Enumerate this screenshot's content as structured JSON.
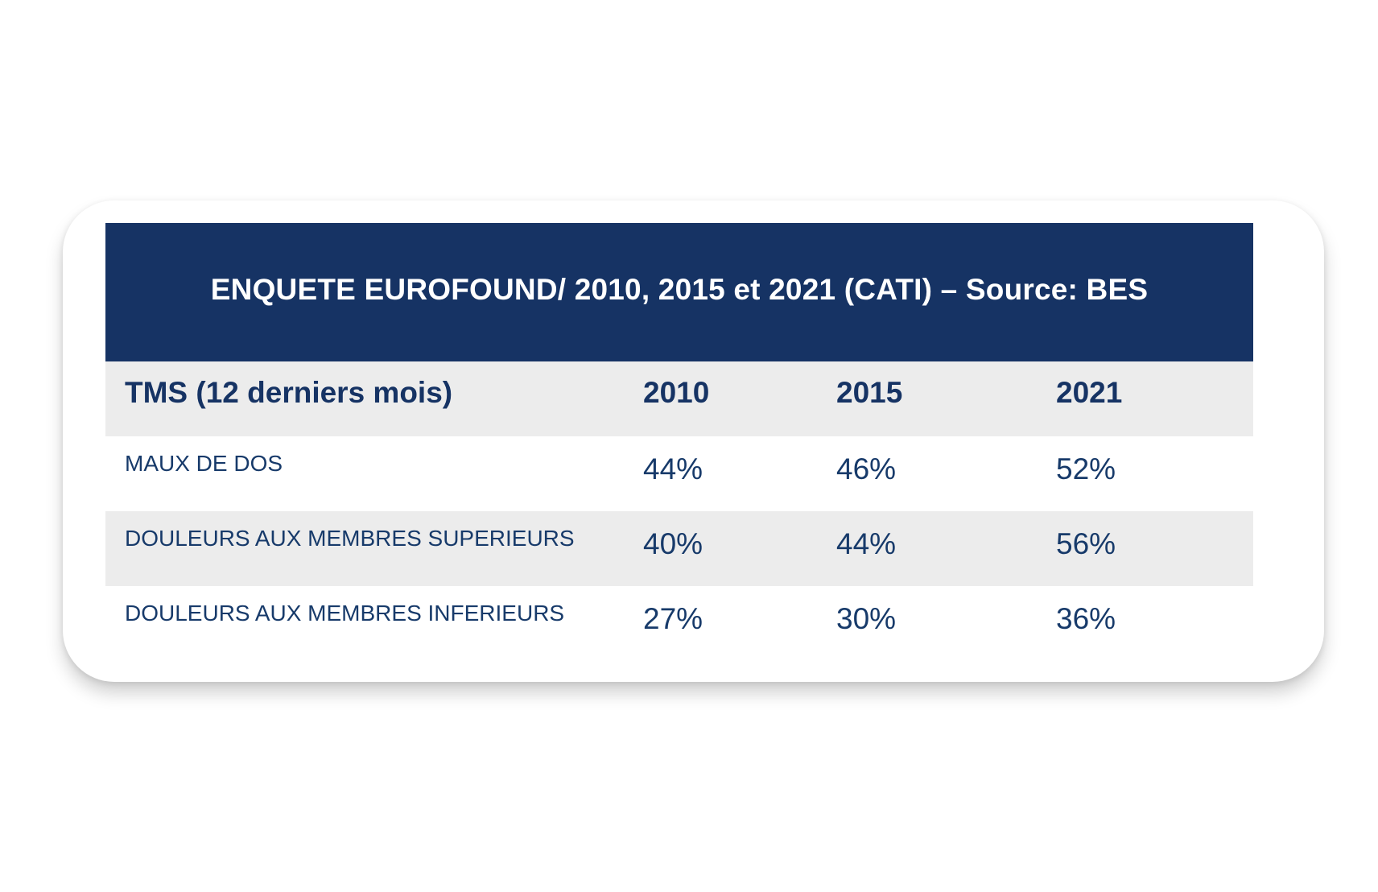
{
  "chart_data": {
    "type": "table",
    "title": "ENQUETE EUROFOUND/ 2010, 2015 et 2021 (CATI) – Source: BES",
    "columns": [
      "TMS (12 derniers mois)",
      "2010",
      "2015",
      "2021"
    ],
    "rows": [
      {
        "label": "MAUX DE DOS",
        "values": [
          "44%",
          "46%",
          "52%"
        ]
      },
      {
        "label": "DOULEURS AUX MEMBRES SUPERIEURS",
        "values": [
          "40%",
          "44%",
          "56%"
        ]
      },
      {
        "label": "DOULEURS AUX MEMBRES INFERIEURS",
        "values": [
          "27%",
          "30%",
          "36%"
        ]
      }
    ]
  },
  "colors": {
    "banner": "#163364",
    "text": "#173a6a",
    "shaded_row": "#ececec"
  }
}
